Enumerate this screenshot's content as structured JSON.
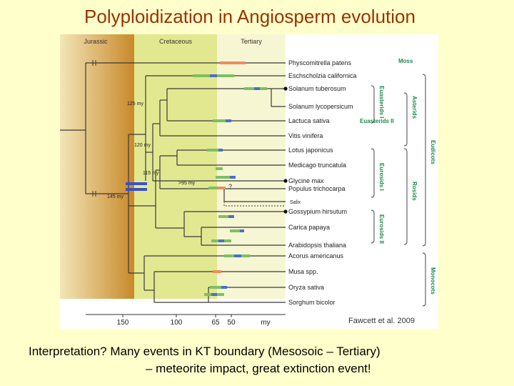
{
  "slide": {
    "title": "Polyploidization in Angiosperm evolution",
    "interpretation_line1": "Interpretation?  Many events in KT boundary (Mesosoic – Tertiary)",
    "interpretation_line2": "– meteorite impact, great extinction event!"
  },
  "figure": {
    "periods": [
      "Jurassic",
      "Cretaceous",
      "Tertiary"
    ],
    "taxa": [
      "Physcomitrella patens",
      "Eschscholzia californica",
      "Solanum tuberosum",
      "Solanum lycopersicum",
      "Lactuca sativa",
      "Vitis vinifera",
      "Lotus japonicus",
      "Medicago truncatula",
      "Glycine max",
      "Populus trichocarpa",
      "Salix",
      "Gossypium hirsutum",
      "Carica papaya",
      "Arabidopsis thaliana",
      "Acorus americanus",
      "Musa spp.",
      "Oryza sativa",
      "Sorghum bicolor"
    ],
    "node_ages": [
      "125 my",
      "120 my",
      "115 my",
      ">95 my",
      "145 my"
    ],
    "event_mark": "?",
    "clade_labels": {
      "moss": "Moss",
      "euasterids_i": "Euasterids I",
      "euasterids_ii": "Euasterids II",
      "asterids": "Asterids",
      "eudicots": "Eudicots",
      "eurosids_i": "Eurosids I",
      "rosids": "Rosids",
      "eurosids_ii": "Eurosids II",
      "monocots": "Monocots"
    },
    "axis_ticks": [
      "150",
      "100",
      "65",
      "50"
    ],
    "axis_unit": "my",
    "citation": "Fawcett et al. 2009",
    "colors": {
      "slide_bg": "#ffffcc",
      "title": "#993300",
      "jurassic": "#d4a050",
      "cretaceous": "#e2e890",
      "tertiary": "#f4f4d0",
      "clade_text": "#1e8a4e",
      "event_green": "#7cc063",
      "event_blue": "#4a70c8",
      "event_orange": "#ef8b62"
    }
  }
}
